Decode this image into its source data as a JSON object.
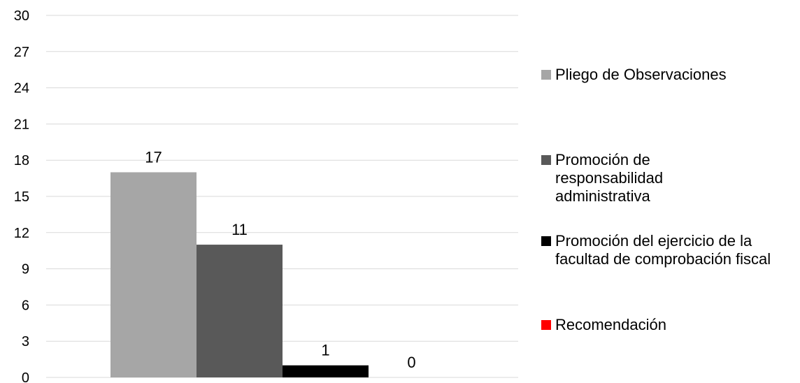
{
  "chart_data": {
    "type": "bar",
    "title": "",
    "xlabel": "",
    "ylabel": "",
    "ylim": [
      0,
      30
    ],
    "yticks": [
      0,
      3,
      6,
      9,
      12,
      15,
      18,
      21,
      24,
      27,
      30
    ],
    "grid": true,
    "legend_position": "right",
    "series": [
      {
        "name": "Pliego de Observaciones",
        "value": 17,
        "color": "#a6a6a6"
      },
      {
        "name": "Promoción de responsabilidad administrativa",
        "value": 11,
        "color": "#595959"
      },
      {
        "name": "Promoción del ejercicio de la facultad de comprobación fiscal",
        "value": 1,
        "color": "#000000"
      },
      {
        "name": "Recomendación",
        "value": 0,
        "color": "#ff0000"
      }
    ]
  }
}
